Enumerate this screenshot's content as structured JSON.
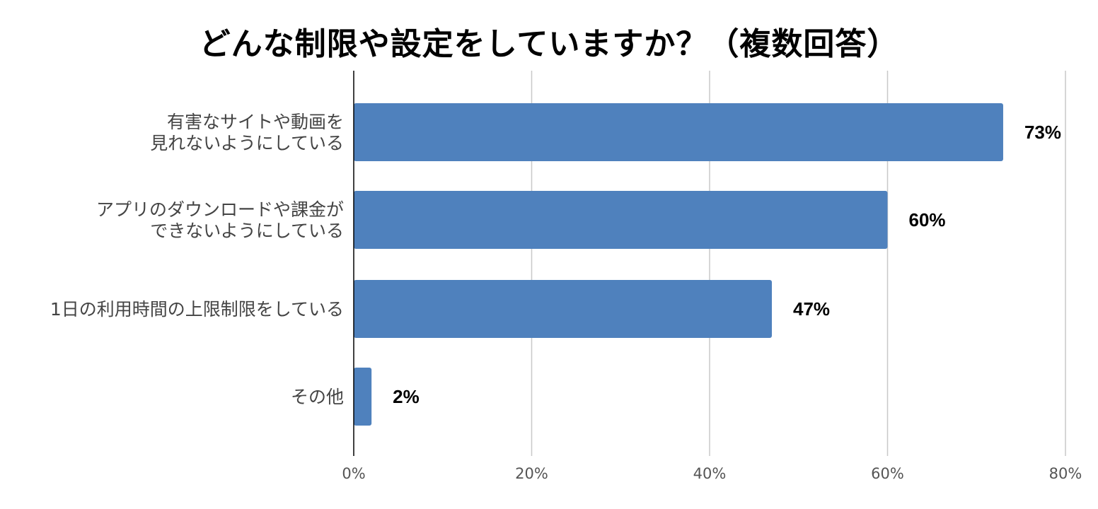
{
  "chart_data": {
    "type": "bar",
    "orientation": "horizontal",
    "title": "どんな制限や設定をしていますか？（複数回答）",
    "categories": [
      [
        "有害なサイトや動画を",
        "見れないようにしている"
      ],
      [
        "アプリのダウンロードや課金が",
        "できないようにしている"
      ],
      [
        "1日の利用時間の上限制限をしている"
      ],
      [
        "その他"
      ]
    ],
    "values": [
      73,
      60,
      47,
      2
    ],
    "data_labels": [
      "73%",
      "60%",
      "47%",
      "2%"
    ],
    "x_ticks": [
      "0%",
      "20%",
      "40%",
      "60%",
      "80%"
    ],
    "xlim": [
      0,
      80
    ],
    "grid": true,
    "legend": "none",
    "bar_color": "#4f81bd"
  }
}
